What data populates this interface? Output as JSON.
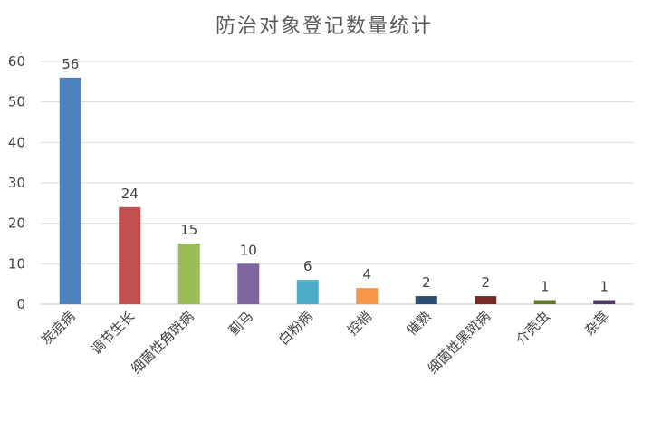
{
  "chart_data": {
    "type": "bar",
    "title": "防治对象登记数量统计",
    "xlabel": "",
    "ylabel": "",
    "ylim": [
      0,
      60
    ],
    "yticks": [
      0,
      10,
      20,
      30,
      40,
      50,
      60
    ],
    "grid": true,
    "legend": "none",
    "categories": [
      "炭疽病",
      "调节生长",
      "细菌性角斑病",
      "蓟马",
      "白粉病",
      "控梢",
      "催熟",
      "细菌性黑斑病",
      "介壳虫",
      "杂草"
    ],
    "values": [
      56,
      24,
      15,
      10,
      6,
      4,
      2,
      2,
      1,
      1
    ],
    "colors": [
      "#4f81bd",
      "#c0504d",
      "#9bbb59",
      "#8064a2",
      "#4bacc6",
      "#f79646",
      "#2c4d75",
      "#772c2a",
      "#5f7530",
      "#4d3b62"
    ]
  }
}
